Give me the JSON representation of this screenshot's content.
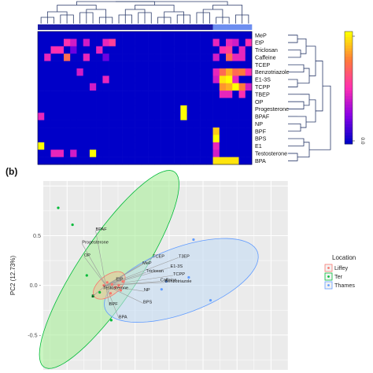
{
  "panel_b_label": "(b)",
  "chart_data": [
    {
      "type": "heatmap",
      "rows": [
        "MeP",
        "EtP",
        "Triclosan",
        "Caffeine",
        "TCEP",
        "Benzotriazole",
        "E1-3S",
        "TCPP",
        "TBEP",
        "OP",
        "Progesterone",
        "BPAF",
        "NP",
        "BPF",
        "BPS",
        "E1",
        "Testosterone",
        "BPA"
      ],
      "n_columns": 33,
      "column_group_colors": {
        "dark": "#1a1aa8",
        "light": "#6d8ef0"
      },
      "column_groups": [
        "dark",
        "dark",
        "dark",
        "dark",
        "dark",
        "dark",
        "dark",
        "dark",
        "dark",
        "dark",
        "dark",
        "dark",
        "dark",
        "dark",
        "dark",
        "dark",
        "dark",
        "dark",
        "dark",
        "dark",
        "dark",
        "dark",
        "dark",
        "dark",
        "dark",
        "dark",
        "dark",
        "light",
        "light",
        "light",
        "light",
        "light",
        "light"
      ],
      "colormap": [
        "#0000c8",
        "#8a00e6",
        "#ff2fb0",
        "#ff7a3a",
        "#ffff00"
      ],
      "colorbar_labels": [
        "",
        "0.0"
      ],
      "values": [
        [
          0,
          0,
          0,
          0,
          0,
          0,
          0,
          0,
          0,
          0,
          0,
          0,
          0,
          0,
          0,
          0,
          0,
          0,
          0,
          0,
          0,
          0,
          0,
          0,
          0,
          0,
          0,
          0,
          0,
          0,
          0,
          0,
          0
        ],
        [
          0,
          0,
          0,
          0,
          0.5,
          0.4,
          0,
          0.4,
          0,
          0,
          0.45,
          0.55,
          0,
          0,
          0,
          0,
          0,
          0,
          0,
          0,
          0,
          0,
          0,
          0,
          0,
          0,
          0,
          0.45,
          0,
          0.45,
          0.4,
          0,
          0.5
        ],
        [
          0,
          0,
          0.5,
          0.5,
          0,
          0.2,
          0,
          0,
          0,
          0.45,
          0,
          0,
          0,
          0,
          0,
          0,
          0,
          0,
          0,
          0,
          0,
          0,
          0,
          0,
          0,
          0,
          0,
          0,
          0.5,
          0.55,
          0,
          0.45,
          0
        ],
        [
          0,
          0.45,
          0,
          0,
          0.7,
          0,
          0,
          0.45,
          0,
          0,
          0.2,
          0,
          0,
          0,
          0,
          0,
          0,
          0,
          0,
          0,
          0,
          0,
          0,
          0,
          0,
          0,
          0,
          0.4,
          0,
          0.7,
          0.45,
          0.45,
          0
        ],
        [
          0,
          0,
          0,
          0,
          0,
          0,
          0,
          0,
          0,
          0,
          0,
          0,
          0,
          0,
          0,
          0,
          0,
          0,
          0,
          0,
          0,
          0,
          0,
          0,
          0,
          0,
          0,
          0,
          0,
          0,
          0,
          0,
          0
        ],
        [
          0,
          0,
          0,
          0,
          0,
          0,
          0.4,
          0,
          0,
          0,
          0,
          0,
          0,
          0,
          0,
          0,
          0,
          0,
          0,
          0,
          0,
          0,
          0,
          0,
          0,
          0,
          0,
          0.45,
          0.7,
          0.85,
          0.7,
          0.75,
          0.5
        ],
        [
          0,
          0,
          0,
          0,
          0,
          0,
          0,
          0,
          0,
          0,
          0.45,
          0,
          0,
          0,
          0,
          0,
          0,
          0,
          0,
          0,
          0,
          0,
          0,
          0,
          0,
          0,
          0,
          0.4,
          0.95,
          1,
          0.45,
          0,
          0
        ],
        [
          0,
          0,
          0,
          0,
          0,
          0,
          0,
          0,
          0.4,
          0,
          0,
          0,
          0,
          0,
          0,
          0,
          0,
          0,
          0,
          0,
          0,
          0,
          0,
          0,
          0,
          0,
          0,
          0,
          0.8,
          0.85,
          1,
          0.75,
          0.4
        ],
        [
          0,
          0,
          0,
          0,
          0,
          0,
          0,
          0,
          0,
          0,
          0,
          0,
          0,
          0,
          0,
          0,
          0,
          0,
          0,
          0,
          0,
          0,
          0,
          0,
          0,
          0,
          0,
          0,
          0.45,
          0.45,
          0,
          0.5,
          0
        ],
        [
          0,
          0,
          0,
          0,
          0,
          0,
          0,
          0,
          0,
          0,
          0,
          0,
          0,
          0,
          0,
          0,
          0,
          0,
          0,
          0,
          0,
          0,
          0,
          0,
          0,
          0,
          0,
          0,
          0,
          0,
          0,
          0,
          0
        ],
        [
          0,
          0,
          0,
          0,
          0,
          0,
          0,
          0,
          0,
          0,
          0,
          0,
          0,
          0,
          0,
          0,
          0,
          0,
          0,
          0,
          0,
          0,
          1,
          0,
          0,
          0,
          0,
          0,
          0,
          0,
          0,
          0,
          0
        ],
        [
          0.45,
          0,
          0,
          0,
          0,
          0,
          0,
          0,
          0,
          0,
          0,
          0,
          0,
          0,
          0,
          0,
          0,
          0,
          0,
          0,
          0,
          0,
          1,
          0,
          0,
          0,
          0,
          0,
          0,
          0,
          0,
          0,
          0
        ],
        [
          0,
          0,
          0,
          0,
          0,
          0,
          0,
          0,
          0,
          0,
          0,
          0,
          0,
          0,
          0,
          0,
          0,
          0,
          0,
          0,
          0,
          0,
          0,
          0,
          0,
          0,
          0,
          0,
          0,
          0,
          0,
          0,
          0
        ],
        [
          0,
          0,
          0,
          0,
          0,
          0,
          0,
          0,
          0,
          0,
          0,
          0,
          0,
          0,
          0,
          0,
          0,
          0,
          0,
          0,
          0,
          0,
          0,
          0,
          0,
          0,
          0,
          0.9,
          0,
          0,
          0,
          0,
          0
        ],
        [
          0,
          0,
          0,
          0,
          0,
          0,
          0,
          0,
          0,
          0,
          0,
          0,
          0,
          0,
          0,
          0,
          0,
          0,
          0,
          0,
          0,
          0,
          0,
          0,
          0,
          0,
          0,
          1,
          0,
          0,
          0,
          0,
          0
        ],
        [
          1,
          0,
          0,
          0,
          0,
          0,
          0,
          0,
          0,
          0,
          0,
          0,
          0,
          0,
          0,
          0,
          0,
          0,
          0,
          0,
          0,
          0,
          0,
          0,
          0,
          0,
          0,
          0.45,
          0,
          0,
          0,
          0,
          0
        ],
        [
          0,
          0,
          0.45,
          0.45,
          0,
          0.4,
          0,
          0,
          1,
          0,
          0,
          0,
          0,
          0,
          0,
          0,
          0,
          0,
          0,
          0,
          0,
          0,
          0,
          0,
          0,
          0,
          0,
          0.4,
          0,
          0,
          0,
          0,
          0
        ],
        [
          0,
          0,
          0,
          0,
          0,
          0,
          0,
          0,
          0,
          0,
          0,
          0,
          0,
          0,
          0,
          0,
          0,
          0,
          0,
          0,
          0,
          0,
          0,
          0,
          0,
          0,
          0,
          0.95,
          0.95,
          0.95,
          0.95,
          0,
          0
        ]
      ]
    },
    {
      "type": "scatter",
      "ylabel": "PC2 (12.73%)",
      "xlim": [
        -1.85,
        1.75
      ],
      "ylim": [
        -0.85,
        1.05
      ],
      "y_ticks": [
        0.5,
        0.0,
        -0.5
      ],
      "y_tick_labels": [
        "0.5",
        "0.0 -",
        "-0.5 -"
      ],
      "grid": true,
      "legend": {
        "title": "Location",
        "placement": "right",
        "entries": [
          {
            "label": "Liffey",
            "color": "#f8766d"
          },
          {
            "label": "Ter",
            "color": "#00ba38"
          },
          {
            "label": "Thames",
            "color": "#619cff"
          }
        ]
      },
      "ellipses": [
        {
          "group": "Ter",
          "color": "#00ba38",
          "fill": "#a8ee9a"
        },
        {
          "group": "Thames",
          "color": "#619cff",
          "fill": "#c5dcf3"
        },
        {
          "group": "Liffey",
          "color": "#f8766d",
          "fill": "#e8c49a"
        }
      ],
      "series": [
        {
          "name": "Liffey",
          "color": "#f8766d",
          "points": [
            [
              -0.96,
              0.0
            ],
            [
              -0.91,
              0.03
            ],
            [
              -0.84,
              0.01
            ],
            [
              -0.79,
              -0.02
            ],
            [
              -0.74,
              0.0
            ],
            [
              -0.71,
              -0.05
            ],
            [
              -0.68,
              0.04
            ],
            [
              -0.86,
              -0.08
            ]
          ]
        },
        {
          "name": "Ter",
          "color": "#00ba38",
          "points": [
            [
              -1.63,
              0.78
            ],
            [
              -1.42,
              0.61
            ],
            [
              -1.21,
              0.1
            ],
            [
              -1.12,
              -0.11
            ],
            [
              -0.85,
              -0.35
            ],
            [
              -1.02,
              -0.07
            ]
          ]
        },
        {
          "name": "Thames",
          "color": "#619cff",
          "points": [
            [
              0.36,
              0.46
            ],
            [
              0.61,
              -0.15
            ],
            [
              0.29,
              0.08
            ],
            [
              -0.04,
              0.04
            ],
            [
              -0.11,
              -0.04
            ]
          ]
        }
      ],
      "loadings": [
        {
          "label": "BPAF",
          "x": -1.08,
          "y": 0.55
        },
        {
          "label": "Progesterone",
          "x": -1.28,
          "y": 0.42
        },
        {
          "label": "OP",
          "x": -1.25,
          "y": 0.29
        },
        {
          "label": "MeP",
          "x": -0.39,
          "y": 0.21
        },
        {
          "label": "TCEP",
          "x": -0.24,
          "y": 0.28
        },
        {
          "label": "T3EP",
          "x": 0.14,
          "y": 0.28
        },
        {
          "label": "E1-3S",
          "x": 0.02,
          "y": 0.18
        },
        {
          "label": "Triclosan",
          "x": -0.34,
          "y": 0.13
        },
        {
          "label": "TCPP",
          "x": 0.06,
          "y": 0.1
        },
        {
          "label": "Caffeine",
          "x": -0.13,
          "y": 0.04
        },
        {
          "label": "Benzotriazole",
          "x": -0.06,
          "y": 0.03
        },
        {
          "label": "NP",
          "x": -0.37,
          "y": -0.06
        },
        {
          "label": "BPS",
          "x": -0.38,
          "y": -0.18
        },
        {
          "label": "EtP",
          "x": -0.78,
          "y": 0.05
        },
        {
          "label": "Testosterone",
          "x": -0.97,
          "y": -0.04
        },
        {
          "label": "E",
          "x": -1.14,
          "y": -0.12
        },
        {
          "label": "BPF",
          "x": -0.88,
          "y": -0.2
        },
        {
          "label": "BPA",
          "x": -0.74,
          "y": -0.33
        }
      ]
    }
  ]
}
